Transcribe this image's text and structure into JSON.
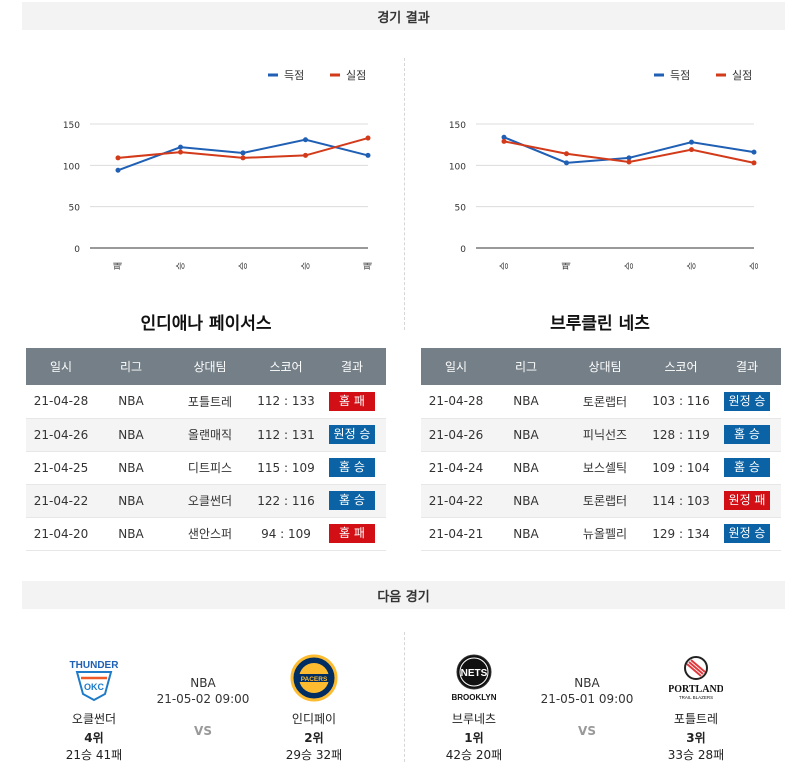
{
  "results_header": "경기 결과",
  "next_header": "다음 경기",
  "legend": {
    "scored": "득점",
    "allowed": "실점",
    "scored_color": "#1f5fb4",
    "allowed_color": "#d23a1a"
  },
  "teams": [
    {
      "name": "인디애나 페이서스",
      "chart_data": {
        "type": "line",
        "categories": [
          "패",
          "승",
          "승",
          "승",
          "패"
        ],
        "series": [
          {
            "name": "득점",
            "values": [
              94,
              122,
              115,
              131,
              112
            ]
          },
          {
            "name": "실점",
            "values": [
              109,
              116,
              109,
              112,
              133
            ]
          }
        ],
        "ylim": [
          0,
          150
        ],
        "yticks": [
          0,
          50,
          100,
          150
        ],
        "legend": "top-right",
        "grid": true
      },
      "table": {
        "headers": [
          "일시",
          "리그",
          "상대팀",
          "스코어",
          "결과"
        ],
        "rows": [
          {
            "date": "21-04-28",
            "league": "NBA",
            "opponent": "포틀트레",
            "score": "112 : 133",
            "result": "홈 패",
            "win": false
          },
          {
            "date": "21-04-26",
            "league": "NBA",
            "opponent": "올랜매직",
            "score": "112 : 131",
            "result": "원정 승",
            "win": true
          },
          {
            "date": "21-04-25",
            "league": "NBA",
            "opponent": "디트피스",
            "score": "115 : 109",
            "result": "홈 승",
            "win": true
          },
          {
            "date": "21-04-22",
            "league": "NBA",
            "opponent": "오클썬더",
            "score": "122 : 116",
            "result": "홈 승",
            "win": true
          },
          {
            "date": "21-04-20",
            "league": "NBA",
            "opponent": "샌안스퍼",
            "score": "94 : 109",
            "result": "홈 패",
            "win": false
          }
        ]
      }
    },
    {
      "name": "브루클린 네츠",
      "chart_data": {
        "type": "line",
        "categories": [
          "승",
          "패",
          "승",
          "승",
          "승"
        ],
        "series": [
          {
            "name": "득점",
            "values": [
              134,
              103,
              109,
              128,
              116
            ]
          },
          {
            "name": "실점",
            "values": [
              129,
              114,
              104,
              119,
              103
            ]
          }
        ],
        "ylim": [
          0,
          150
        ],
        "yticks": [
          0,
          50,
          100,
          150
        ],
        "legend": "top-right",
        "grid": true
      },
      "table": {
        "headers": [
          "일시",
          "리그",
          "상대팀",
          "스코어",
          "결과"
        ],
        "rows": [
          {
            "date": "21-04-28",
            "league": "NBA",
            "opponent": "토론랩터",
            "score": "103 : 116",
            "result": "원정 승",
            "win": true
          },
          {
            "date": "21-04-26",
            "league": "NBA",
            "opponent": "피닉선즈",
            "score": "128 : 119",
            "result": "홈 승",
            "win": true
          },
          {
            "date": "21-04-24",
            "league": "NBA",
            "opponent": "보스셀틱",
            "score": "109 : 104",
            "result": "홈 승",
            "win": true
          },
          {
            "date": "21-04-22",
            "league": "NBA",
            "opponent": "토론랩터",
            "score": "114 : 103",
            "result": "원정 패",
            "win": false
          },
          {
            "date": "21-04-21",
            "league": "NBA",
            "opponent": "뉴올펠리",
            "score": "129 : 134",
            "result": "원정 승",
            "win": true
          }
        ]
      }
    }
  ],
  "next_games": [
    {
      "league": "NBA",
      "datetime": "21-05-02 09:00",
      "vs": "VS",
      "home": {
        "name": "오클썬더",
        "rank": "4위",
        "record": "21승 41패",
        "logo_text": "THUNDER",
        "logo_sub": "OKC"
      },
      "away": {
        "name": "인디페이",
        "rank": "2위",
        "record": "29승 32패",
        "logo_text": "PACERS"
      }
    },
    {
      "league": "NBA",
      "datetime": "21-05-01 09:00",
      "vs": "VS",
      "home": {
        "name": "브루네츠",
        "rank": "1위",
        "record": "42승 20패",
        "logo_text": "NETS",
        "logo_sub": "BROOKLYN"
      },
      "away": {
        "name": "포틀트레",
        "rank": "3위",
        "record": "33승 28패",
        "logo_text": "PORTLAND",
        "logo_sub": "TRAIL BLAZERS"
      }
    }
  ]
}
